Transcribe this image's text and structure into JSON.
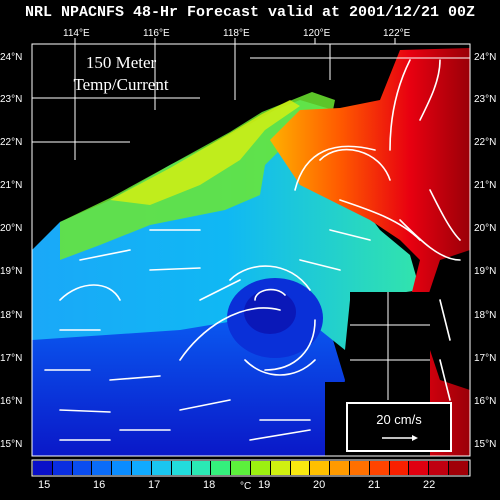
{
  "title": "NRL NPACNFS 48-Hr Forecast valid at 2001/12/21 00Z",
  "map_label": [
    "150 Meter",
    "Temp/Current"
  ],
  "lon_ticks": [
    "114°E",
    "116°E",
    "118°E",
    "120°E",
    "122°E"
  ],
  "lat_ticks": [
    "24°N",
    "23°N",
    "22°N",
    "21°N",
    "20°N",
    "19°N",
    "18°N",
    "17°N",
    "16°N",
    "15°N"
  ],
  "scale": {
    "label": "20 cm/s"
  },
  "colorbar": {
    "labels": [
      "15",
      "16",
      "17",
      "18",
      "19",
      "20",
      "21",
      "22"
    ],
    "unit": "°C",
    "colors": [
      "#0a10c8",
      "#0a2ee0",
      "#0a4df0",
      "#0a6cf8",
      "#0a8cff",
      "#10aaff",
      "#1ac6f0",
      "#22dcdc",
      "#2ae8b4",
      "#34f07c",
      "#5cf03c",
      "#9cf010",
      "#d0f010",
      "#f8e810",
      "#ffc000",
      "#ff9a00",
      "#ff7000",
      "#ff4400",
      "#f82000",
      "#e00010",
      "#c00010",
      "#a00008"
    ]
  },
  "colors": {
    "land": "#000000",
    "text": "#ffffff",
    "arrow": "#ffffff"
  }
}
